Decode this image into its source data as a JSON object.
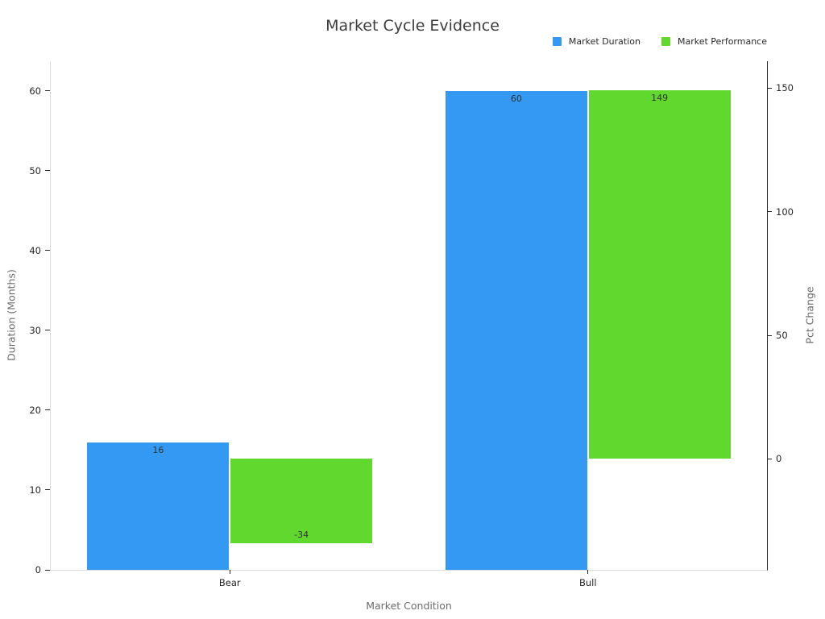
{
  "chart_data": {
    "type": "bar",
    "title": "Market Cycle Evidence",
    "categories": [
      "Bear",
      "Bull"
    ],
    "series": [
      {
        "name": "Market Duration",
        "axis": "left",
        "color": "#3399f2",
        "values": [
          16,
          60
        ]
      },
      {
        "name": "Market Performance",
        "axis": "right",
        "color": "#60d82e",
        "values": [
          -34,
          149
        ]
      }
    ],
    "xlabel": "Market Condition",
    "axes": {
      "left": {
        "label": "Duration (Months)",
        "ticks": [
          0,
          10,
          20,
          30,
          40,
          50,
          60
        ],
        "min": 0,
        "max": 63.7
      },
      "right": {
        "label": "Pct Change",
        "ticks": [
          0,
          50,
          100,
          150
        ],
        "min": -44.9,
        "max": 160.9
      }
    },
    "legend_position": "top-right",
    "grid": false,
    "bar_width_fraction": 0.2,
    "colors": {
      "spine_light": "#dcdcdc",
      "spine_dark": "#262626",
      "tick_text": "#262626",
      "title_text": "#3c3c3c",
      "axis_title_text": "#6b6b6b"
    }
  }
}
